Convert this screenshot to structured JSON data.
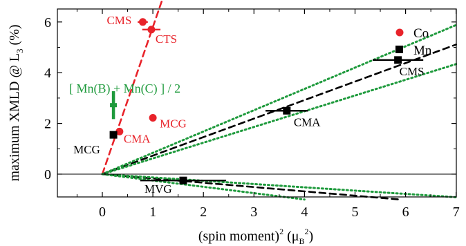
{
  "chart_data": {
    "type": "scatter",
    "xlabel": "(spin moment)",
    "xlabel_exp": "2",
    "xlabel_unit_open": " (μ",
    "xlabel_unit_sub": "B",
    "xlabel_unit_exp": "2",
    "xlabel_unit_close": ")",
    "ylabel": "maximum XMLD @ L",
    "ylabel_sub": "3",
    "ylabel_unit": " (%)",
    "xlim": [
      -0.9,
      7.0
    ],
    "ylim": [
      -1.0,
      7.0
    ],
    "xticks": [
      0,
      1,
      2,
      3,
      4,
      5,
      6,
      7
    ],
    "yticks": [
      0,
      2,
      4,
      6
    ],
    "grid": false,
    "legend_position": "top-right",
    "colors": {
      "co": "#e8232a",
      "mn": "#000000",
      "avg": "#1e9a3c"
    },
    "legend": [
      {
        "label": "Co",
        "marker": "circle",
        "color": "#e8232a"
      },
      {
        "label": "Mn",
        "marker": "square",
        "color": "#000000"
      }
    ],
    "series": [
      {
        "name": "Co",
        "marker": "circle",
        "color": "#e8232a",
        "points": [
          {
            "x": 0.8,
            "y": 6.0,
            "xerr": 0.1,
            "label": "CMS"
          },
          {
            "x": 0.97,
            "y": 5.7,
            "xerr": 0.18,
            "label": "CTS"
          },
          {
            "x": 1.0,
            "y": 2.22,
            "xerr": 0.0,
            "label": "MCG"
          },
          {
            "x": 0.34,
            "y": 1.68,
            "xerr": 0.0,
            "label": "CMA"
          }
        ]
      },
      {
        "name": "Mn",
        "marker": "square",
        "color": "#000000",
        "points": [
          {
            "x": 0.22,
            "y": 1.55,
            "xerr": 0.05,
            "label": "MCG"
          },
          {
            "x": 3.65,
            "y": 2.5,
            "xerr": 0.42,
            "label": "CMA"
          },
          {
            "x": 5.85,
            "y": 4.5,
            "xerr": 0.5,
            "label": "CMS"
          },
          {
            "x": 1.6,
            "y": -0.25,
            "xerr": 0.85,
            "label": "MVG"
          }
        ]
      }
    ],
    "avg_point": {
      "x": 0.22,
      "y": 2.72,
      "yerr": 0.55,
      "label": "[ Mn(B) + Mn(C) ] / 2",
      "color": "#1e9a3c"
    },
    "lines": [
      {
        "style": "dashed",
        "color": "#e8232a",
        "slope": 5.8
      },
      {
        "style": "dashed",
        "color": "#000000",
        "slope": 0.73
      },
      {
        "style": "dotted",
        "color": "#1e9a3c",
        "slope": 0.84
      },
      {
        "style": "dotted",
        "color": "#1e9a3c",
        "slope": 0.62
      },
      {
        "style": "dashed",
        "color": "#000000",
        "slope": -0.17
      },
      {
        "style": "dotted",
        "color": "#1e9a3c",
        "slope": -0.13
      },
      {
        "style": "dotted",
        "color": "#1e9a3c",
        "slope": -0.25
      }
    ]
  }
}
